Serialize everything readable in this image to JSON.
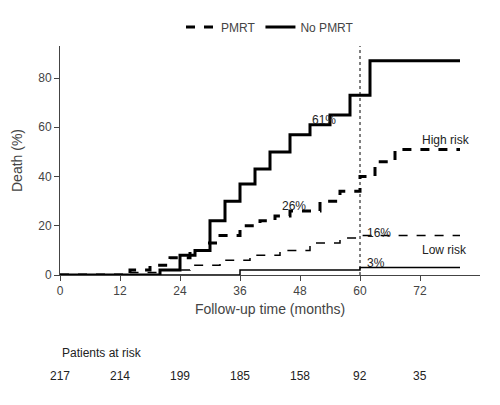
{
  "chart_data": {
    "type": "line",
    "x_label": "Follow-up time (months)",
    "y_label": "Death (%)",
    "xlim": [
      0,
      84
    ],
    "ylim": [
      0,
      93
    ],
    "xticks": [
      0,
      12,
      24,
      36,
      48,
      60,
      72
    ],
    "yticks": [
      0,
      20,
      40,
      60,
      80
    ],
    "grid": false,
    "legend": "top",
    "series": [
      {
        "name": "No PMRT",
        "group": "High risk",
        "color": "black",
        "line_style": "solid",
        "x": [
          0,
          20,
          20,
          24,
          24,
          27,
          27,
          30,
          30,
          33,
          33,
          36,
          36,
          39,
          39,
          42,
          42,
          46,
          46,
          50,
          50,
          54,
          54,
          58,
          58,
          62,
          62,
          66,
          66,
          80
        ],
        "values": [
          0,
          0,
          2,
          2,
          8,
          8,
          10,
          10,
          22,
          22,
          30,
          30,
          37,
          37,
          43,
          43,
          50,
          50,
          57,
          57,
          61,
          61,
          65,
          65,
          73,
          73,
          87,
          87,
          87,
          87
        ]
      },
      {
        "name": "PMRT",
        "group": "High risk",
        "color": "black",
        "line_style": "dashed",
        "x": [
          0,
          14,
          14,
          18,
          18,
          22,
          22,
          26,
          26,
          29,
          29,
          32,
          32,
          36,
          36,
          40,
          40,
          43,
          43,
          46,
          46,
          49,
          49,
          52,
          52,
          56,
          56,
          60,
          60,
          63,
          63,
          67,
          67,
          80
        ],
        "values": [
          0,
          0,
          2,
          2,
          4,
          4,
          7,
          7,
          10,
          10,
          13,
          13,
          16,
          16,
          20,
          20,
          22,
          22,
          24,
          24,
          26,
          26,
          26,
          26,
          30,
          30,
          34,
          34,
          40,
          40,
          46,
          46,
          51,
          51
        ]
      },
      {
        "name": "No PMRT",
        "group": "Low risk",
        "color": "black",
        "line_style": "solid",
        "x": [
          0,
          36,
          36,
          60,
          60,
          80
        ],
        "values": [
          0,
          0,
          2,
          2,
          3,
          3
        ]
      },
      {
        "name": "PMRT",
        "group": "Low risk",
        "color": "black",
        "line_style": "dashed",
        "x": [
          0,
          14,
          14,
          20,
          20,
          26,
          26,
          32,
          32,
          38,
          38,
          44,
          44,
          50,
          50,
          56,
          56,
          60,
          60,
          66,
          66,
          80
        ],
        "values": [
          0,
          0,
          1,
          1,
          2,
          2,
          4,
          4,
          6,
          6,
          8,
          8,
          10,
          10,
          13,
          13,
          15,
          15,
          16,
          16,
          16,
          16
        ]
      }
    ],
    "vlines": [
      {
        "x": 60,
        "color": "black",
        "line_style": "dotted"
      }
    ],
    "annotations": [
      {
        "x": 50,
        "y": 63,
        "text": "61%"
      },
      {
        "x": 44,
        "y": 28,
        "text": "26%"
      },
      {
        "x": 61,
        "y": 17,
        "text": "16%"
      },
      {
        "x": 61,
        "y": 5,
        "text": "3%"
      },
      {
        "x": 72,
        "y": 55,
        "text": "High risk"
      },
      {
        "x": 72,
        "y": 10,
        "text": "Low risk"
      }
    ],
    "risk_table": {
      "label": "Patients at risk",
      "x": [
        0,
        12,
        24,
        36,
        48,
        60,
        72
      ],
      "values": [
        217,
        214,
        199,
        185,
        158,
        92,
        35
      ]
    }
  }
}
